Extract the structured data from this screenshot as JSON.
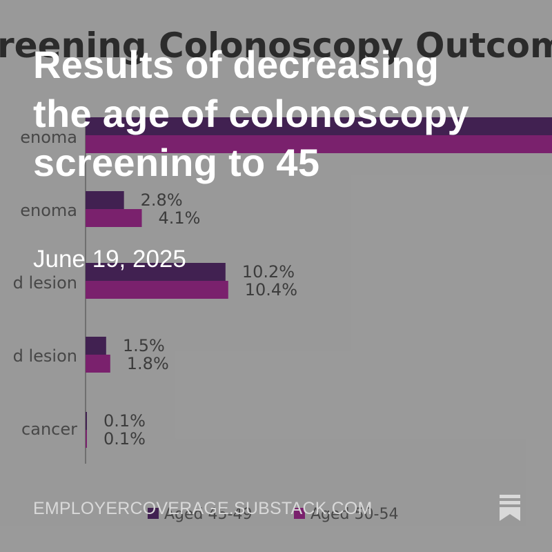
{
  "post": {
    "title": "Results of decreasing the age of colonoscopy screening to 45",
    "date": "June 19, 2025",
    "site": "EMPLOYERCOVERAGE.SUBSTACK.COM",
    "bookmark_icon": "bookmark-icon"
  },
  "colors": {
    "background": "#a3a3a3",
    "series_45_49": "#330a47",
    "series_50_54": "#7c0a6b",
    "text_light": "#ffffff"
  },
  "chart_data": {
    "type": "bar",
    "orientation": "horizontal",
    "title": "reening Colonoscopy Outcom",
    "categories": [
      "enoma",
      "enoma",
      "d lesion",
      "d lesion",
      "cancer"
    ],
    "series": [
      {
        "name": "Aged 45-49",
        "values": [
          null,
          2.8,
          10.2,
          1.5,
          0.1
        ],
        "labels": [
          "",
          "2.8%",
          "10.2%",
          "1.5%",
          "0.1%"
        ]
      },
      {
        "name": "Aged 50-54",
        "values": [
          null,
          4.1,
          10.4,
          1.8,
          0.1
        ],
        "labels": [
          "",
          "4.1%",
          "10.4%",
          "1.8%",
          "0.1%"
        ]
      }
    ],
    "xlim": [
      0,
      34
    ],
    "legend": "bottom",
    "grid": false
  }
}
